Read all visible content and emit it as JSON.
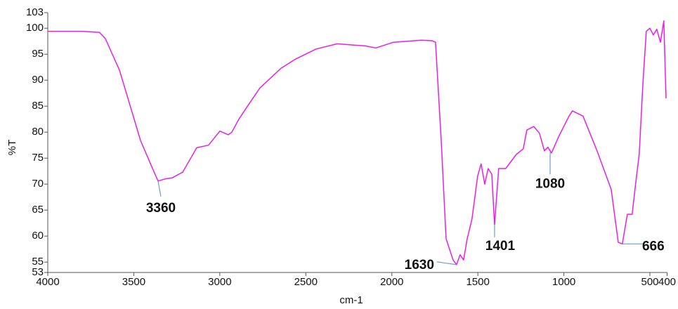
{
  "chart_data": {
    "type": "line",
    "xlabel": "cm-1",
    "ylabel": "%T",
    "xlim": [
      4000,
      400
    ],
    "xticks": [
      4000,
      3500,
      3000,
      2500,
      2000,
      1500,
      1000,
      500,
      400
    ],
    "ylim": [
      53,
      103
    ],
    "yticks": [
      53,
      55,
      60,
      65,
      70,
      75,
      80,
      85,
      90,
      95,
      100,
      103
    ],
    "series": [
      {
        "name": "%T",
        "color": "#e81ee8",
        "x": [
          4000,
          3800,
          3700,
          3665,
          3583,
          3522,
          3461,
          3400,
          3359,
          3318,
          3277,
          3216,
          3134,
          3065,
          3000,
          2951,
          2930,
          2889,
          2849,
          2767,
          2644,
          2563,
          2440,
          2318,
          2154,
          2093,
          1991,
          1828,
          1767,
          1746,
          1713,
          1685,
          1644,
          1624,
          1603,
          1583,
          1562,
          1534,
          1501,
          1481,
          1460,
          1440,
          1419,
          1403,
          1379,
          1338,
          1277,
          1236,
          1215,
          1175,
          1142,
          1113,
          1093,
          1072,
          1031,
          970,
          950,
          889,
          807,
          725,
          684,
          660,
          631,
          603,
          582,
          562,
          541,
          521,
          500,
          480,
          460,
          439,
          419,
          406
        ],
        "values": [
          99.4,
          99.4,
          99.2,
          98,
          91.9,
          85.2,
          78.4,
          73.7,
          70.6,
          71,
          71.2,
          72.3,
          77,
          77.5,
          80.2,
          79.5,
          80,
          82.5,
          84.5,
          88.5,
          92.3,
          94,
          96,
          97,
          96.6,
          96.2,
          97.3,
          97.7,
          97.6,
          97.3,
          78.4,
          59.5,
          55.4,
          54.5,
          56.4,
          55.4,
          59.5,
          63.3,
          71.6,
          73.9,
          70,
          73,
          71.9,
          62.2,
          73,
          73,
          75.7,
          76.8,
          80.4,
          81.1,
          79.8,
          76.4,
          77.1,
          76,
          79.1,
          83.1,
          84.1,
          83.1,
          76.4,
          69,
          58.8,
          58.5,
          64.2,
          64.2,
          70.3,
          75.7,
          89.2,
          99.4,
          100,
          98.7,
          99.8,
          97.3,
          101.4,
          86.5
        ]
      }
    ],
    "annotations": [
      {
        "text": "3360",
        "x": 3359,
        "y": 70.6
      },
      {
        "text": "1630",
        "x": 1624,
        "y": 54.5
      },
      {
        "text": "1401",
        "x": 1403,
        "y": 62.2
      },
      {
        "text": "1080",
        "x": 1080,
        "y": 76.2
      },
      {
        "text": "666",
        "x": 660,
        "y": 58.5
      }
    ]
  }
}
